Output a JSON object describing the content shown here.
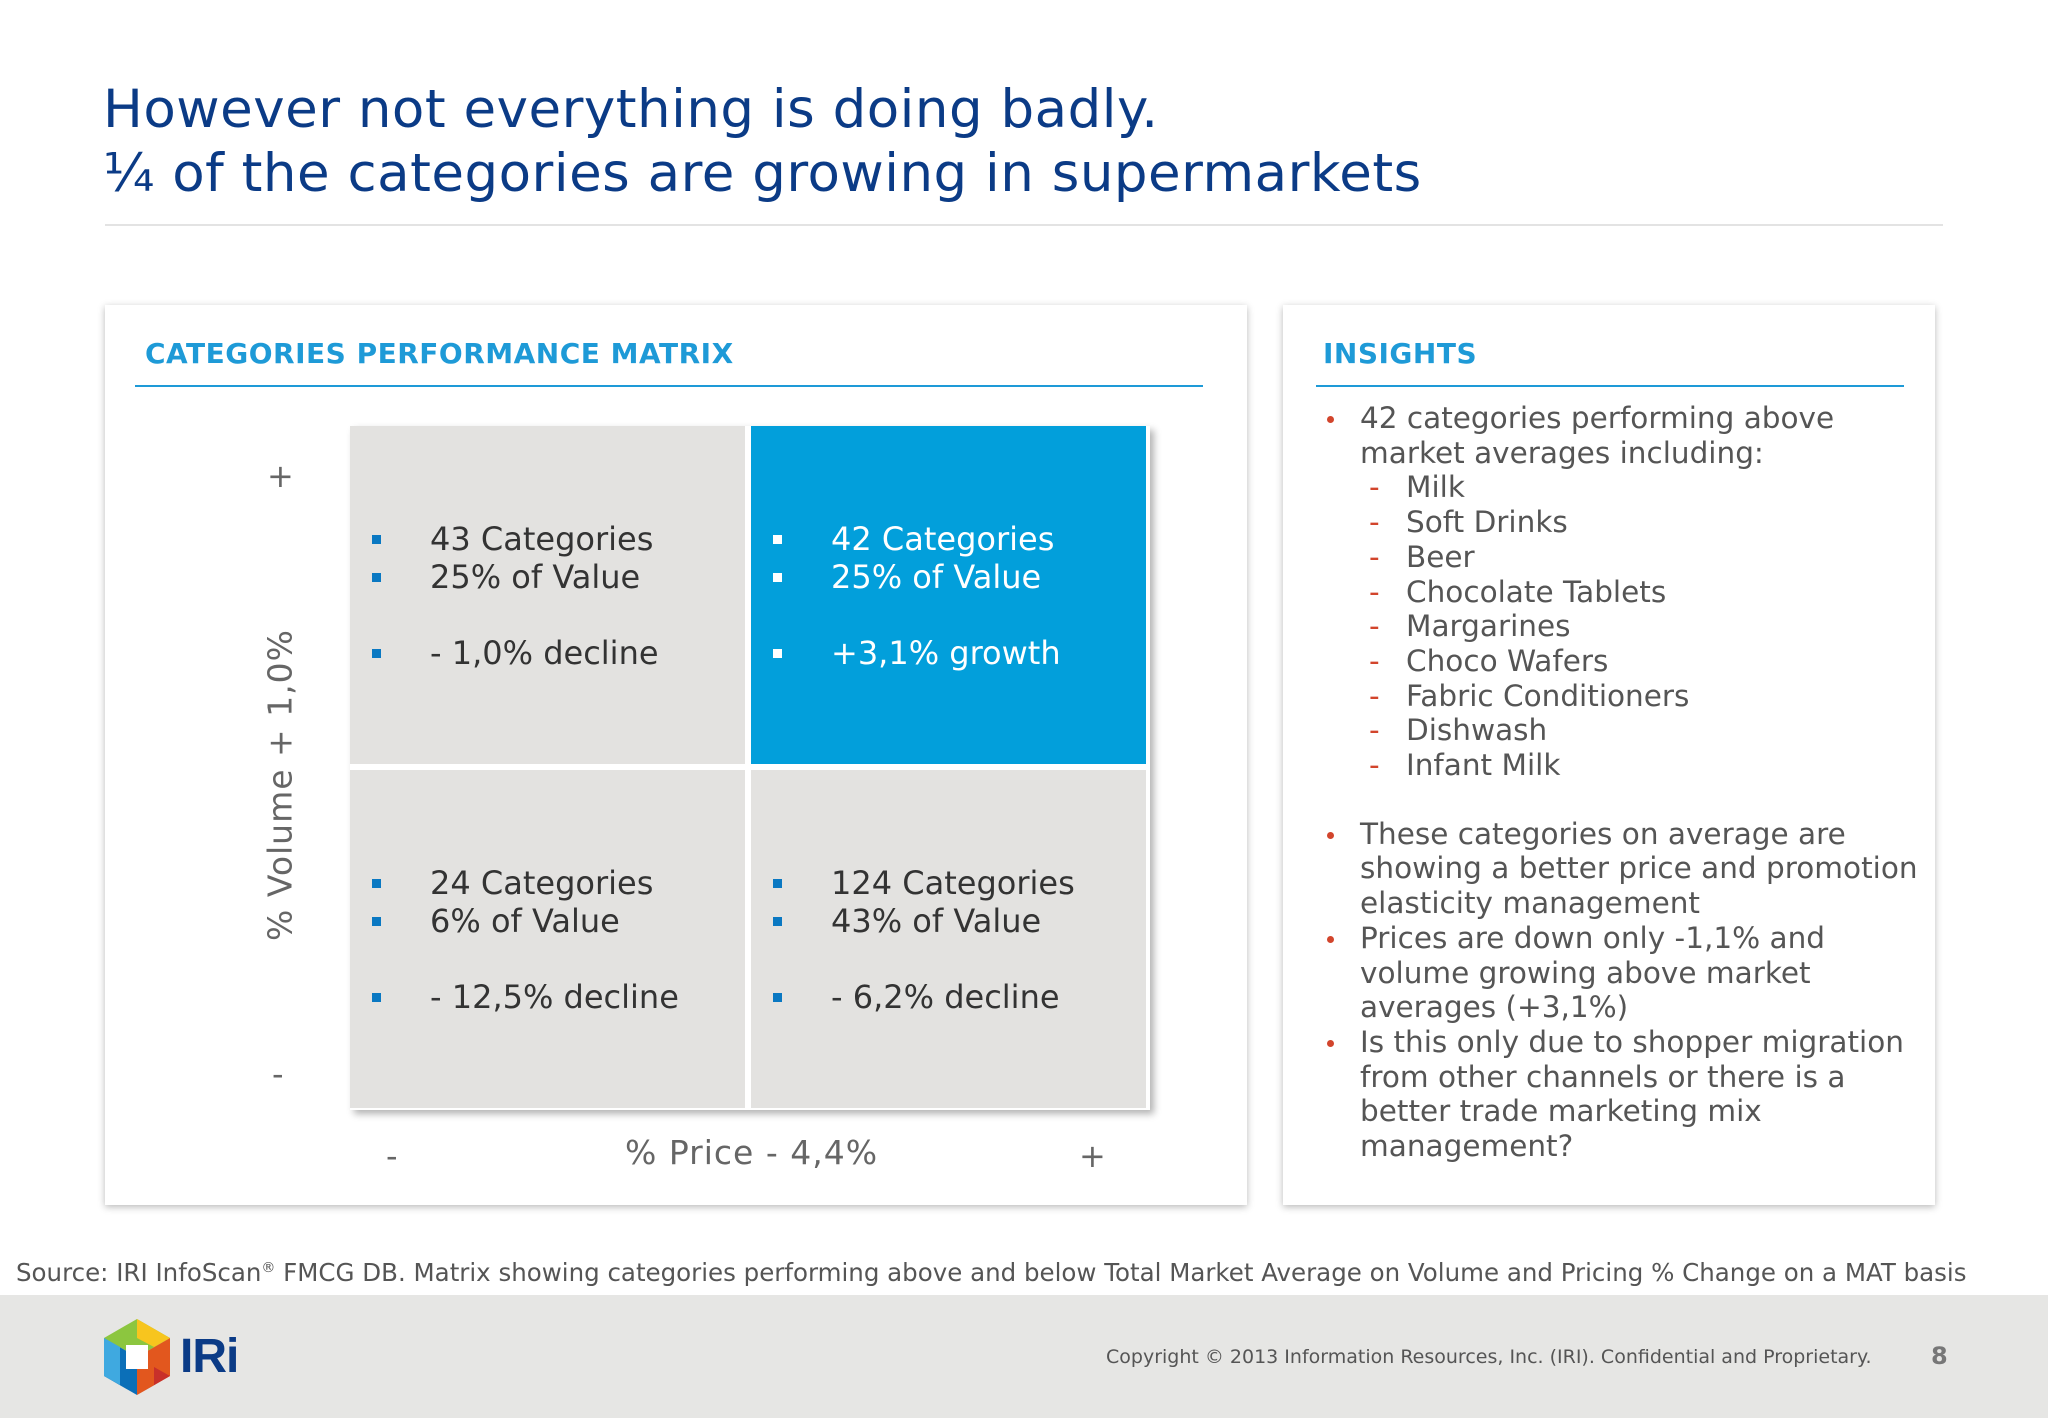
{
  "slide": {
    "title_line1": "However not everything is doing badly.",
    "title_line2": "¼ of the categories are growing in supermarkets"
  },
  "matrix_panel": {
    "heading": "CATEGORIES PERFORMANCE MATRIX",
    "y_axis_label": "% Volume + 1,0%",
    "y_plus": "+",
    "y_minus": "-",
    "x_axis_label": "% Price - 4,4%",
    "x_minus": "-",
    "x_plus": "+",
    "highlight_color": "#029fdb",
    "cells": {
      "top_left": [
        "43 Categories",
        "25% of Value",
        "- 1,0% decline"
      ],
      "top_right": [
        "42 Categories",
        "25% of Value",
        "+3,1% growth"
      ],
      "bottom_left": [
        "24 Categories",
        "6% of Value",
        "- 12,5% decline"
      ],
      "bottom_right": [
        "124 Categories",
        "43% of Value",
        "- 6,2% decline"
      ]
    }
  },
  "insights_panel": {
    "heading": "INSIGHTS",
    "bullet1": "42 categories performing above market averages including:",
    "sub_items": [
      "Milk",
      "Soft Drinks",
      "Beer",
      "Chocolate Tablets",
      "Margarines",
      "Choco Wafers",
      "Fabric Conditioners",
      "Dishwash",
      "Infant Milk"
    ],
    "dash": "-",
    "bullet2": "These categories on average are showing a better price and promotion elasticity management",
    "bullet3": "Prices are down only -1,1% and volume growing above market averages (+3,1%)",
    "bullet4": "Is this only due to shopper migration from other channels or there is a better trade marketing mix management?"
  },
  "source": {
    "prefix": "Source: IRI InfoScan",
    "registered": "®",
    "suffix": " FMCG DB. Matrix showing categories performing above and below Total Market Average on Volume and Pricing % Change on a MAT basis"
  },
  "footer": {
    "logo_text": "IRi",
    "copyright": "Copyright © 2013 Information Resources, Inc. (IRI). Confidential and Proprietary.",
    "page_number": "8"
  },
  "icons": {
    "bullet_square": "square-bullet-icon",
    "bullet_dot": "dot-bullet-icon",
    "logo": "iri-cube-logo"
  }
}
